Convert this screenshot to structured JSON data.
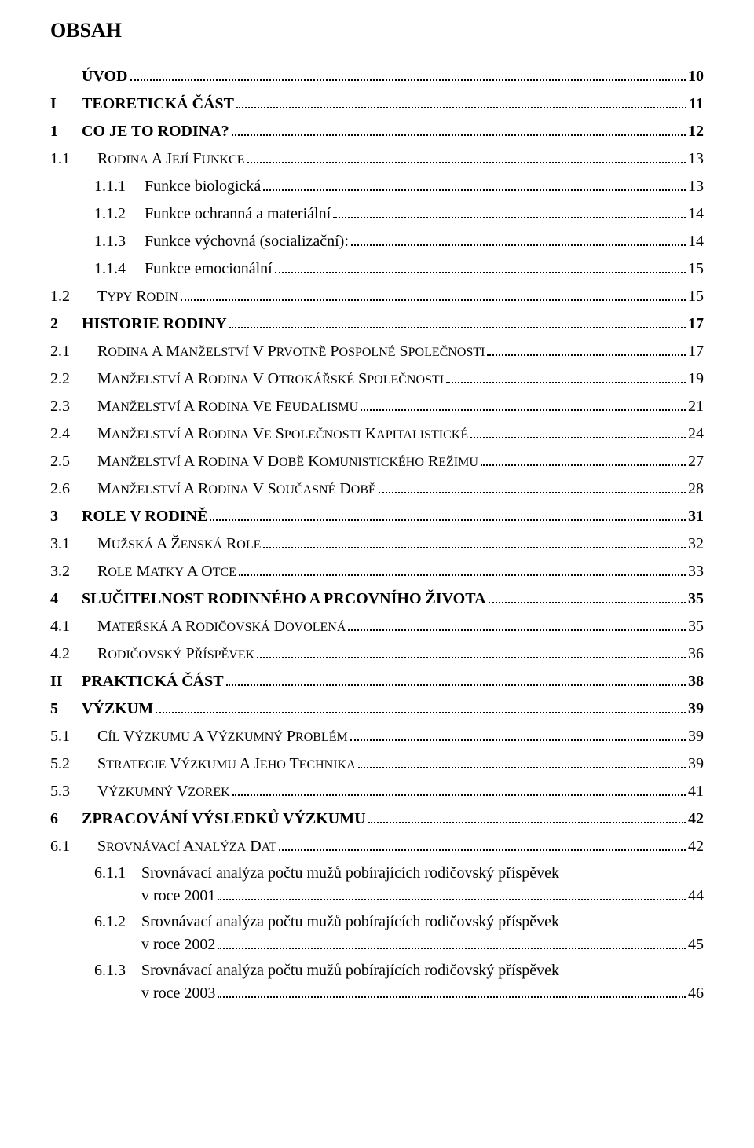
{
  "page_title": "OBSAH",
  "font_family": "Times New Roman",
  "text_color": "#000000",
  "background_color": "#ffffff",
  "toc": [
    {
      "level": 0,
      "num": "",
      "label": "ÚVOD",
      "page": "10",
      "bold": true
    },
    {
      "level": 0,
      "num": "I",
      "label": "TEORETICKÁ ČÁST",
      "page": "11",
      "bold": true
    },
    {
      "level": 0,
      "num": "1",
      "label": "CO JE TO RODINA?",
      "page": "12",
      "bold": true
    },
    {
      "level": 1,
      "num": "1.1",
      "label": "RODINA A JEJÍ FUNKCE",
      "page": "13",
      "smallcaps": true
    },
    {
      "level": 2,
      "num": "1.1.1",
      "label": "Funkce biologická",
      "page": "13"
    },
    {
      "level": 2,
      "num": "1.1.2",
      "label": "Funkce ochranná a materiální",
      "page": "14"
    },
    {
      "level": 2,
      "num": "1.1.3",
      "label": "Funkce výchovná (socializační):",
      "page": "14"
    },
    {
      "level": 2,
      "num": "1.1.4",
      "label": "Funkce emocionální",
      "page": "15"
    },
    {
      "level": 1,
      "num": "1.2",
      "label": "TYPY RODIN",
      "page": "15",
      "smallcaps": true
    },
    {
      "level": 0,
      "num": "2",
      "label": "HISTORIE RODINY",
      "page": "17",
      "bold": true
    },
    {
      "level": 1,
      "num": "2.1",
      "label": "RODINA A MANŽELSTVÍ V PRVOTNĚ POSPOLNÉ SPOLEČNOSTI",
      "page": "17",
      "smallcaps": true
    },
    {
      "level": 1,
      "num": "2.2",
      "label": "MANŽELSTVÍ A RODINA V OTROKÁŘSKÉ SPOLEČNOSTI",
      "page": "19",
      "smallcaps": true
    },
    {
      "level": 1,
      "num": "2.3",
      "label": "MANŽELSTVÍ A RODINA VE FEUDALISMU",
      "page": "21",
      "smallcaps": true
    },
    {
      "level": 1,
      "num": "2.4",
      "label": "MANŽELSTVÍ A RODINA VE SPOLEČNOSTI KAPITALISTICKÉ",
      "page": "24",
      "smallcaps": true
    },
    {
      "level": 1,
      "num": "2.5",
      "label": "MANŽELSTVÍ A RODINA V DOBĚ KOMUNISTICKÉHO REŽIMU",
      "page": "27",
      "smallcaps": true
    },
    {
      "level": 1,
      "num": "2.6",
      "label": "MANŽELSTVÍ A RODINA V SOUČASNÉ DOBĚ",
      "page": "28",
      "smallcaps": true
    },
    {
      "level": 0,
      "num": "3",
      "label": "ROLE V RODINĚ",
      "page": "31",
      "bold": true
    },
    {
      "level": 1,
      "num": "3.1",
      "label": "MUŽSKÁ A ŽENSKÁ ROLE",
      "page": "32",
      "smallcaps": true
    },
    {
      "level": 1,
      "num": "3.2",
      "label": "ROLE MATKY A OTCE",
      "page": "33",
      "smallcaps": true
    },
    {
      "level": 0,
      "num": "4",
      "label": "SLUČITELNOST RODINNÉHO A PRCOVNÍHO ŽIVOTA",
      "page": "35",
      "bold": true
    },
    {
      "level": 1,
      "num": "4.1",
      "label": "MATEŘSKÁ A RODIČOVSKÁ DOVOLENÁ",
      "page": "35",
      "smallcaps": true
    },
    {
      "level": 1,
      "num": "4.2",
      "label": "RODIČOVSKÝ PŘÍSPĚVEK",
      "page": "36",
      "smallcaps": true
    },
    {
      "level": 0,
      "num": "II",
      "label": "PRAKTICKÁ ČÁST",
      "page": "38",
      "bold": true
    },
    {
      "level": 0,
      "num": "5",
      "label": "VÝZKUM",
      "page": "39",
      "bold": true
    },
    {
      "level": 1,
      "num": "5.1",
      "label": "CÍL VÝZKUMU A VÝZKUMNÝ PROBLÉM",
      "page": "39",
      "smallcaps": true
    },
    {
      "level": 1,
      "num": "5.2",
      "label": "STRATEGIE VÝZKUMU A JEHO TECHNIKA",
      "page": "39",
      "smallcaps": true
    },
    {
      "level": 1,
      "num": "5.3",
      "label": "VÝZKUMNÝ VZOREK",
      "page": "41",
      "smallcaps": true
    },
    {
      "level": 0,
      "num": "6",
      "label": "ZPRACOVÁNÍ VÝSLEDKŮ VÝZKUMU",
      "page": "42",
      "bold": true
    },
    {
      "level": 1,
      "num": "6.1",
      "label": "SROVNÁVACÍ ANALÝZA DAT",
      "page": "42",
      "smallcaps": true
    },
    {
      "level": 3,
      "num": "6.1.1",
      "multi": true,
      "line1": "Srovnávací analýza počtu mužů pobírajících rodičovský příspěvek",
      "line2": "v roce 2001",
      "page": "44"
    },
    {
      "level": 3,
      "num": "6.1.2",
      "multi": true,
      "line1": "Srovnávací analýza počtu mužů pobírajících rodičovský příspěvek",
      "line2": "v roce 2002",
      "page": "45"
    },
    {
      "level": 3,
      "num": "6.1.3",
      "multi": true,
      "line1": "Srovnávací analýza počtu mužů pobírajících rodičovský příspěvek",
      "line2": "v roce 2003",
      "page": "46"
    }
  ]
}
